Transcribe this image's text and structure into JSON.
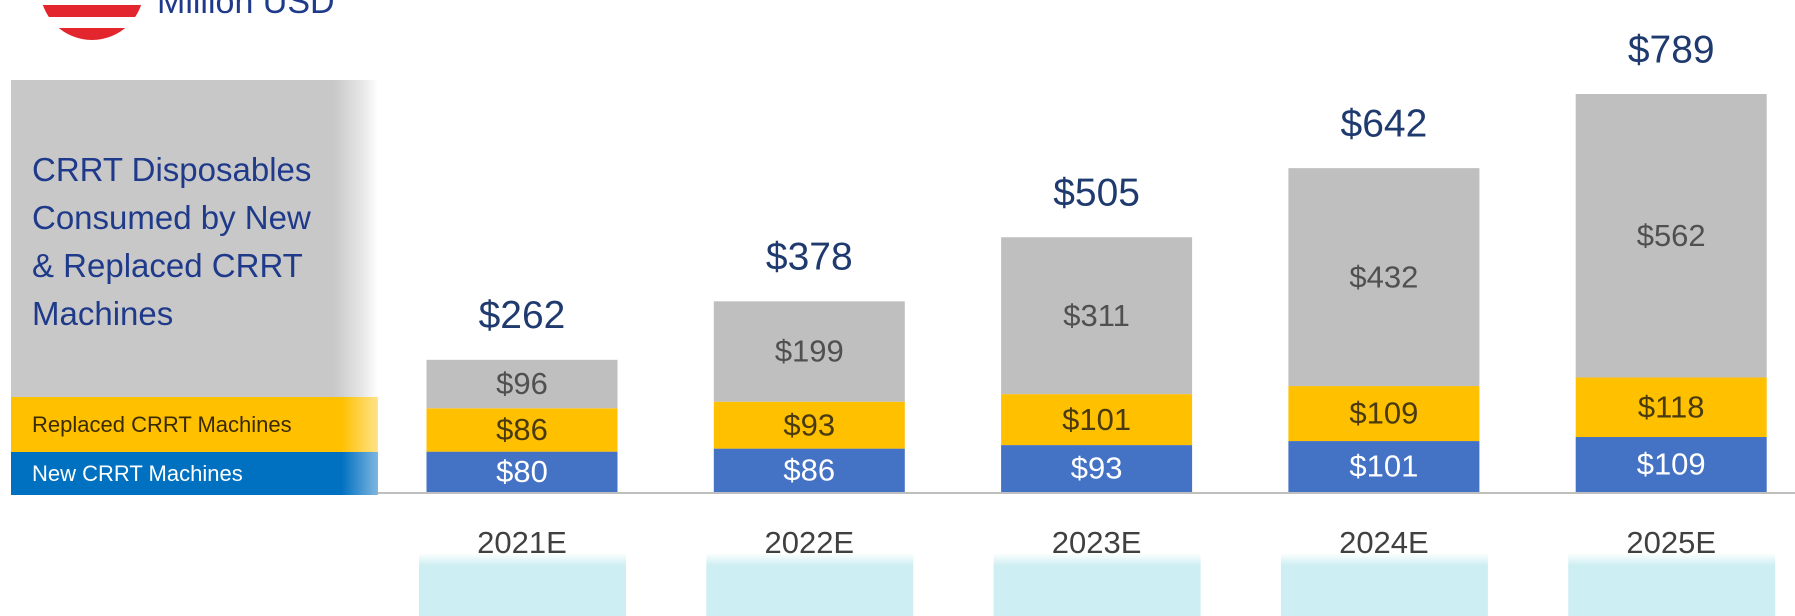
{
  "chart_data": {
    "type": "stacked_bar",
    "unit_caption": "Million USD",
    "categories": [
      "2021E",
      "2022E",
      "2023E",
      "2024E",
      "2025E"
    ],
    "series": [
      {
        "name": "New CRRT Machines",
        "color": "#4472c4",
        "values": [
          80,
          86,
          93,
          101,
          109
        ],
        "value_labels": [
          "$80",
          "$86",
          "$93",
          "$101",
          "$109"
        ]
      },
      {
        "name": "Replaced CRRT Machines",
        "color": "#ffc000",
        "values": [
          86,
          93,
          101,
          109,
          118
        ],
        "value_labels": [
          "$86",
          "$93",
          "$101",
          "$109",
          "$118"
        ]
      },
      {
        "name": "CRRT Disposables Consumed by New & Replaced CRRT Machines",
        "color": "#bfbfbf",
        "values": [
          96,
          199,
          311,
          432,
          562
        ],
        "value_labels": [
          "$96",
          "$199",
          "$311",
          "$432",
          "$562"
        ]
      }
    ],
    "totals": [
      262,
      378,
      505,
      642,
      789
    ],
    "total_labels": [
      "$262",
      "$378",
      "$505",
      "$642",
      "$789"
    ]
  }
}
